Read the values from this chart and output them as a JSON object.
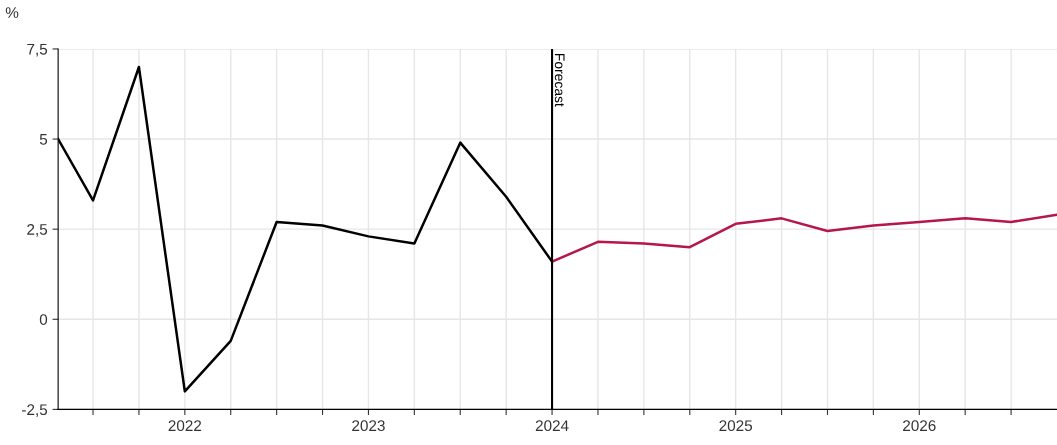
{
  "chart_data": {
    "type": "line",
    "ylabel": "%",
    "xlim": [
      2021.31,
      2026.75
    ],
    "ylim": [
      -2.5,
      7.5
    ],
    "xticks": [
      {
        "value": 2021.5,
        "label": null
      },
      {
        "value": 2021.75,
        "label": null
      },
      2022,
      {
        "value": 2022.25,
        "label": null
      },
      {
        "value": 2022.5,
        "label": null
      },
      {
        "value": 2022.75,
        "label": null
      },
      2023,
      {
        "value": 2023.25,
        "label": null
      },
      {
        "value": 2023.5,
        "label": null
      },
      {
        "value": 2023.75,
        "label": null
      },
      2024,
      {
        "value": 2024.25,
        "label": null
      },
      {
        "value": 2024.5,
        "label": null
      },
      {
        "value": 2024.75,
        "label": null
      },
      2025,
      {
        "value": 2025.25,
        "label": null
      },
      {
        "value": 2025.5,
        "label": null
      },
      {
        "value": 2025.75,
        "label": null
      },
      2026,
      {
        "value": 2026.25,
        "label": null
      },
      {
        "value": 2026.5,
        "label": null
      }
    ],
    "yticks": [
      {
        "value": -2.5,
        "label": "-2,5"
      },
      0,
      {
        "value": 2.5,
        "label": "2,5"
      },
      5,
      {
        "value": 7.5,
        "label": "7,5"
      }
    ],
    "grid": true,
    "marker": "none",
    "line_style": "solid",
    "series": [
      {
        "color": "#000000",
        "x": [
          2021.31,
          2021.5,
          2021.75,
          2022,
          2022.25,
          2022.5,
          2022.75,
          2023,
          2023.25,
          2023.5,
          2023.75,
          2024
        ],
        "values": [
          5.0,
          3.3,
          7.0,
          -2.0,
          -0.6,
          2.7,
          2.6,
          2.3,
          2.1,
          4.9,
          3.4,
          1.6
        ]
      },
      {
        "color": "#b5164b",
        "x": [
          2024,
          2024.25,
          2024.5,
          2024.75,
          2025,
          2025.25,
          2025.5,
          2025.75,
          2026,
          2026.25,
          2026.5,
          2026.75
        ],
        "values": [
          1.6,
          2.15,
          2.1,
          2.0,
          2.65,
          2.8,
          2.45,
          2.6,
          2.7,
          2.8,
          2.7,
          2.9
        ]
      }
    ],
    "ref_lines": [
      {
        "axis": "x",
        "value": 2024,
        "label": "Forecast",
        "color": "#000000"
      }
    ]
  }
}
